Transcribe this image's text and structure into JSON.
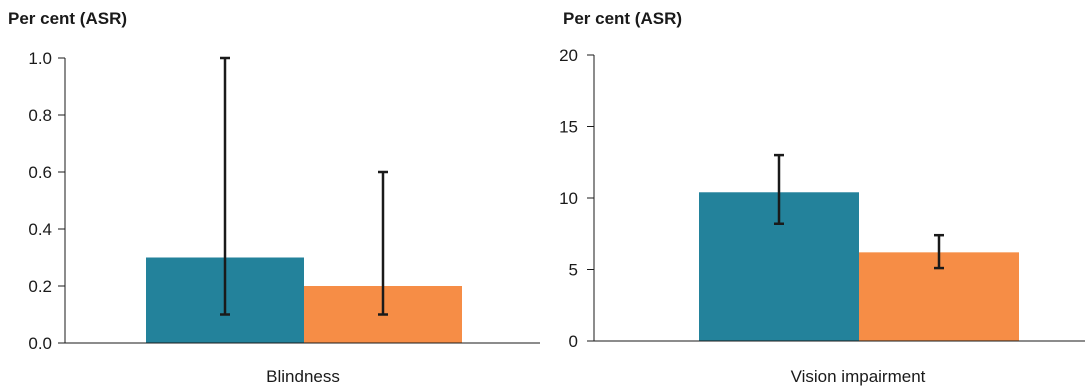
{
  "colors": {
    "series1": "#23829b",
    "series2": "#f68d46",
    "axis": "#1a1a1a",
    "error_bar": "#1a1a1a"
  },
  "chart_data": [
    {
      "type": "bar",
      "title": "",
      "ylabel": "Per cent (ASR)",
      "xlabel": "",
      "categories": [
        "Blindness"
      ],
      "ylim": [
        0,
        1.0
      ],
      "yticks": [
        "0.0",
        "0.2",
        "0.4",
        "0.6",
        "0.8",
        "1.0"
      ],
      "ytick_values": [
        0,
        0.2,
        0.4,
        0.6,
        0.8,
        1.0
      ],
      "series": [
        {
          "values": [
            0.3
          ],
          "error_low": [
            0.1
          ],
          "error_high": [
            1.0
          ]
        },
        {
          "values": [
            0.2
          ],
          "error_low": [
            0.1
          ],
          "error_high": [
            0.6
          ]
        }
      ],
      "grid": false,
      "legend": "none"
    },
    {
      "type": "bar",
      "title": "",
      "ylabel": "Per cent (ASR)",
      "xlabel": "",
      "categories": [
        "Vision impairment"
      ],
      "ylim": [
        0,
        20
      ],
      "yticks": [
        "0",
        "5",
        "10",
        "15",
        "20"
      ],
      "ytick_values": [
        0,
        5,
        10,
        15,
        20
      ],
      "series": [
        {
          "values": [
            10.4
          ],
          "error_low": [
            8.2
          ],
          "error_high": [
            13.0
          ]
        },
        {
          "values": [
            6.2
          ],
          "error_low": [
            5.1
          ],
          "error_high": [
            7.4
          ]
        }
      ],
      "grid": false,
      "legend": "none"
    }
  ]
}
